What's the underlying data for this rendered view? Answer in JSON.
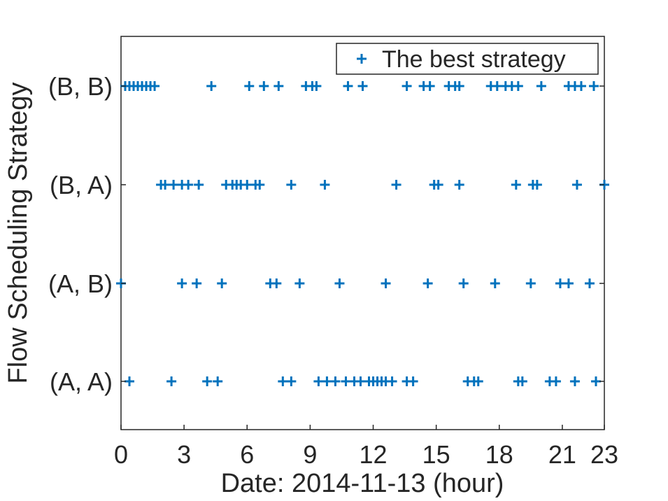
{
  "chart_data": {
    "type": "scatter",
    "title": "",
    "xlabel": "Date: 2014-11-13 (hour)",
    "ylabel": "Flow Scheduling Strategy",
    "xlim": [
      0,
      23
    ],
    "x_ticks": [
      0,
      3,
      6,
      9,
      12,
      15,
      18,
      21,
      23
    ],
    "categories": [
      "(A, A)",
      "(A, B)",
      "(B, A)",
      "(B, B)"
    ],
    "grid": false,
    "legend_position": "top-right",
    "marker": "+",
    "color": "#0072BD",
    "series": [
      {
        "name": "The best strategy",
        "points": {
          "(B, B)": [
            0.2,
            0.4,
            0.6,
            0.8,
            1.0,
            1.2,
            1.4,
            1.6,
            4.3,
            6.1,
            6.8,
            7.5,
            8.8,
            9.1,
            9.3,
            10.8,
            11.5,
            13.6,
            14.4,
            14.7,
            15.6,
            15.9,
            16.1,
            17.6,
            17.9,
            18.3,
            18.6,
            18.9,
            20.0,
            21.3,
            21.6,
            21.9,
            22.5
          ],
          "(B, A)": [
            1.9,
            2.1,
            2.5,
            2.9,
            3.2,
            3.7,
            5.0,
            5.3,
            5.5,
            5.7,
            6.0,
            6.4,
            6.6,
            8.1,
            9.7,
            13.1,
            14.9,
            15.1,
            16.1,
            18.8,
            19.6,
            19.8,
            21.7,
            23.0
          ],
          "(A, B)": [
            0.0,
            2.9,
            3.6,
            4.8,
            7.1,
            7.4,
            8.5,
            10.4,
            12.6,
            14.6,
            16.3,
            17.8,
            19.5,
            20.9,
            21.3,
            22.3
          ],
          "(A, A)": [
            0.4,
            2.4,
            4.1,
            4.6,
            7.7,
            8.1,
            9.4,
            9.8,
            10.2,
            10.7,
            11.1,
            11.4,
            11.8,
            12.0,
            12.2,
            12.4,
            12.6,
            12.9,
            13.6,
            13.9,
            16.5,
            16.8,
            17.0,
            18.9,
            19.1,
            20.4,
            20.7,
            21.6,
            22.6
          ]
        }
      }
    ]
  }
}
